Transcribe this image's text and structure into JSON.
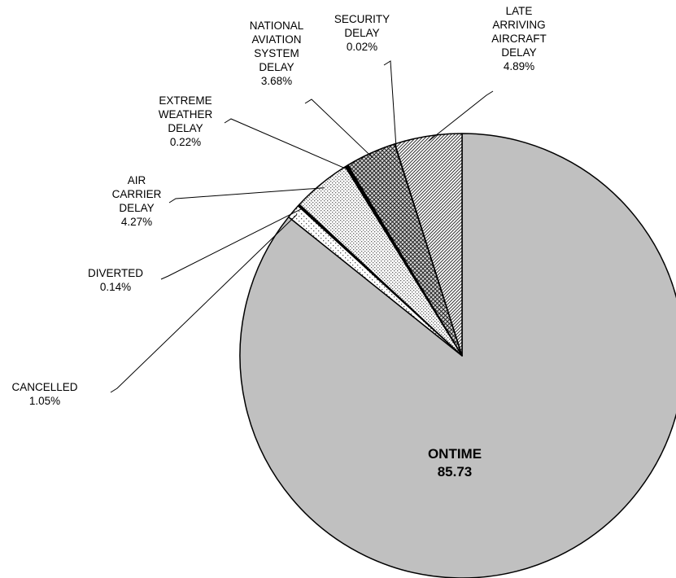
{
  "chart_data": {
    "type": "pie",
    "title": "",
    "start_angle_deg": 0,
    "direction": "clockwise",
    "slices": [
      {
        "key": "ontime",
        "lines": [
          "ONTIME"
        ],
        "value_label": "85.73",
        "value": 85.73,
        "fill": "gray"
      },
      {
        "key": "cancelled",
        "lines": [
          "CANCELLED"
        ],
        "value_label": "1.05%",
        "value": 1.05,
        "fill": "dots-sparse"
      },
      {
        "key": "diverted",
        "lines": [
          "DIVERTED"
        ],
        "value_label": "0.14%",
        "value": 0.14,
        "fill": "black"
      },
      {
        "key": "air-carrier",
        "lines": [
          "AIR",
          "CARRIER",
          "DELAY"
        ],
        "value_label": "4.27%",
        "value": 4.27,
        "fill": "dots-dense"
      },
      {
        "key": "extreme-weather",
        "lines": [
          "EXTREME",
          "WEATHER",
          "DELAY"
        ],
        "value_label": "0.22%",
        "value": 0.22,
        "fill": "black"
      },
      {
        "key": "national-aviation",
        "lines": [
          "NATIONAL",
          "AVIATION",
          "SYSTEM",
          "DELAY"
        ],
        "value_label": "3.68%",
        "value": 3.68,
        "fill": "crosshatch"
      },
      {
        "key": "security",
        "lines": [
          "SECURITY",
          "DELAY"
        ],
        "value_label": "0.02%",
        "value": 0.02,
        "fill": "black"
      },
      {
        "key": "late-aircraft",
        "lines": [
          "LATE",
          "ARRIVING",
          "AIRCRAFT",
          "DELAY"
        ],
        "value_label": "4.89%",
        "value": 4.89,
        "fill": "diag-hatch"
      }
    ]
  }
}
